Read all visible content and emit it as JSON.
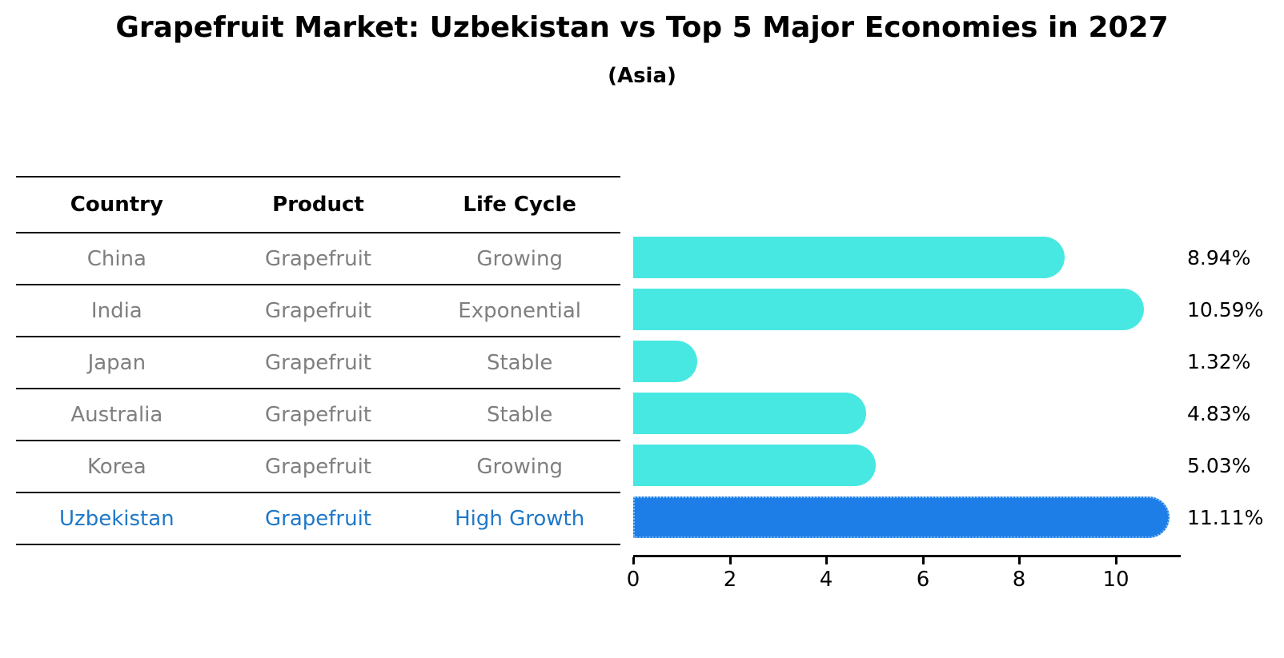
{
  "chart_data": {
    "type": "bar",
    "orientation": "horizontal",
    "title": "Grapefruit Market: Uzbekistan vs Top 5 Major Economies in 2027",
    "subtitle": "(Asia)",
    "categories": [
      "China",
      "India",
      "Japan",
      "Australia",
      "Korea",
      "Uzbekistan"
    ],
    "values": [
      8.94,
      10.59,
      1.32,
      4.83,
      5.03,
      11.11
    ],
    "value_labels": [
      "8.94%",
      "10.59%",
      "1.32%",
      "4.83%",
      "5.03%",
      "11.11%"
    ],
    "highlight_index": 5,
    "xlabel": "",
    "ylabel": "",
    "xlim": [
      0,
      11.35
    ],
    "x_ticks": [
      0,
      2,
      4,
      6,
      8,
      10
    ],
    "grid": false,
    "legend": "none",
    "table": {
      "columns": [
        "Country",
        "Product",
        "Life Cycle"
      ],
      "rows": [
        [
          "China",
          "Grapefruit",
          "Growing"
        ],
        [
          "India",
          "Grapefruit",
          "Exponential"
        ],
        [
          "Japan",
          "Grapefruit",
          "Stable"
        ],
        [
          "Australia",
          "Grapefruit",
          "Stable"
        ],
        [
          "Korea",
          "Grapefruit",
          "Growing"
        ],
        [
          "Uzbekistan",
          "Grapefruit",
          "High Growth"
        ]
      ]
    },
    "colors": {
      "bar": "#48E8E2",
      "highlight_bar": "#1E7EE8",
      "highlight_border": "#7FBDF4",
      "highlight_text": "#1E78C8",
      "row_text": "#7F7F7F",
      "header_text": "#000000",
      "axis": "#000000"
    }
  }
}
